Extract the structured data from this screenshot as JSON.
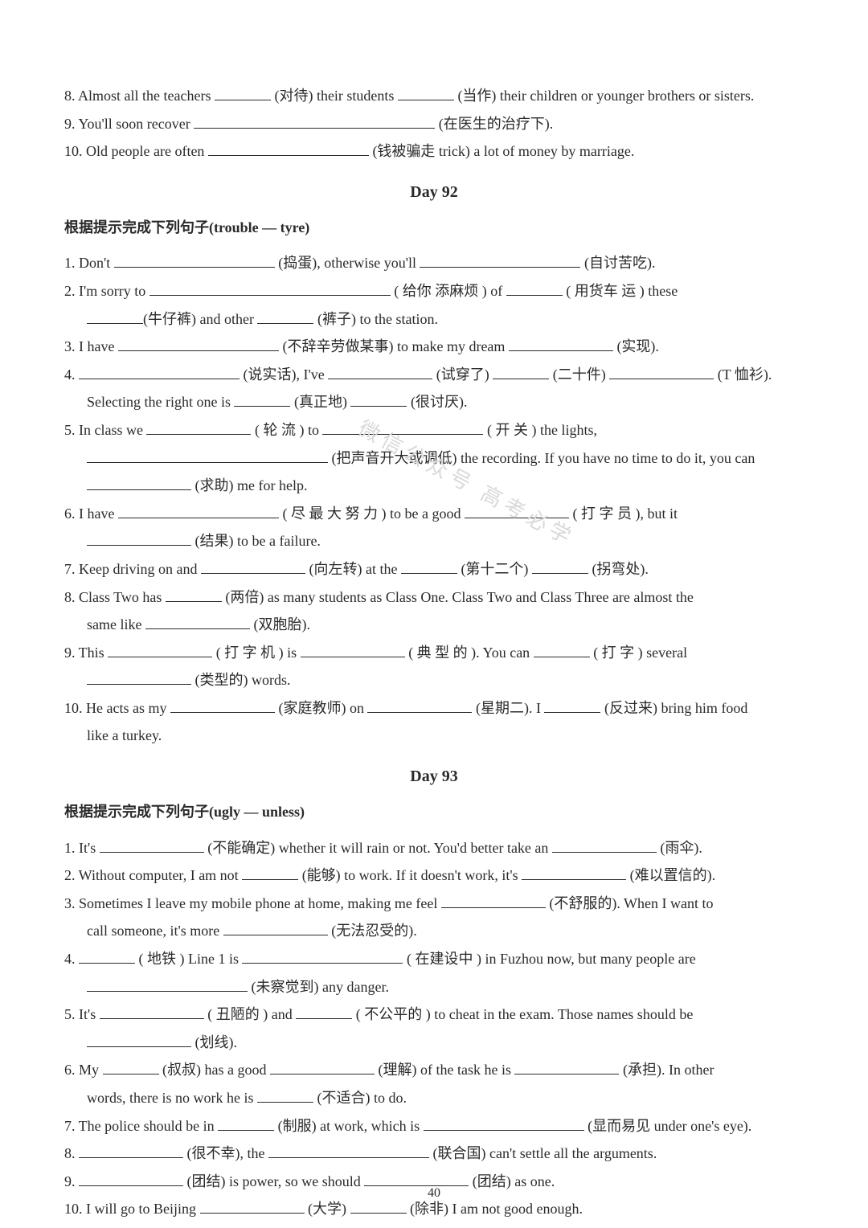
{
  "page_number": "40",
  "watermark": "微信公众号 高考必学",
  "top_items": {
    "q8": {
      "pre": "8. Almost all the teachers ",
      "h1": "(对待) their students ",
      "h2": "(当作) their children or younger brothers or sisters."
    },
    "q9": {
      "pre": "9. You'll soon recover ",
      "h1": "(在医生的治疗下)."
    },
    "q10": {
      "pre": "10. Old people are often ",
      "h1": "(钱被骗走 trick) a lot of money by marriage."
    }
  },
  "day92": {
    "title": "Day 92",
    "instruction": "根据提示完成下列句子(trouble — tyre)",
    "q1": {
      "a": "1. Don't ",
      "b": "(捣蛋), otherwise you'll ",
      "c": "(自讨苦吃)."
    },
    "q2": {
      "a": "2.  I'm sorry to ",
      "b": "( 给你 添麻烦 ) of ",
      "c": "( 用货车 运 ) these",
      "d": "(牛仔裤) and other ",
      "e": "(裤子) to the station."
    },
    "q3": {
      "a": "3. I have ",
      "b": "(不辞辛劳做某事) to make my dream ",
      "c": "(实现)."
    },
    "q4": {
      "a": "4. ",
      "b": "(说实话), I've ",
      "c": "(试穿了) ",
      "d": "(二十件) ",
      "e": "(T 恤衫).",
      "f": "Selecting the right one is ",
      "g": "(真正地) ",
      "h": "(很讨厌)."
    },
    "q5": {
      "a": "5.  In class we ",
      "b": "( 轮 流 ) to ",
      "c": "( 开 关 ) the lights,",
      "d": "(把声音开大或调低) the recording. If you have no time to do it, you can",
      "e": "(求助) me for help."
    },
    "q6": {
      "a": "6. I have ",
      "b": "( 尽 最 大 努 力 ) to be a good ",
      "c": "( 打 字 员 ), but it",
      "d": "(结果) to be a failure."
    },
    "q7": {
      "a": "7. Keep driving on and ",
      "b": "(向左转) at the ",
      "c": "(第十二个) ",
      "d": "(拐弯处)."
    },
    "q8": {
      "a": "8. Class Two has ",
      "b": "(两倍) as many students as Class One. Class Two and Class Three are almost the",
      "c": "same like ",
      "d": "(双胞胎)."
    },
    "q9": {
      "a": "9.  This ",
      "b": "( 打 字 机 ) is ",
      "c": "( 典 型 的 ). You can ",
      "d": "( 打 字 ) several",
      "e": "(类型的) words."
    },
    "q10": {
      "a": "10. He acts as my ",
      "b": "(家庭教师) on ",
      "c": "(星期二). I ",
      "d": "(反过来) bring him food",
      "e": "like a turkey."
    }
  },
  "day93": {
    "title": "Day 93",
    "instruction": "根据提示完成下列句子(ugly — unless)",
    "q1": {
      "a": "1. It's ",
      "b": "(不能确定) whether it will rain or not. You'd better take an ",
      "c": "(雨伞)."
    },
    "q2": {
      "a": "2. Without computer, I am not ",
      "b": "(能够) to work. If it doesn't work, it's ",
      "c": "(难以置信的)."
    },
    "q3": {
      "a": "3. Sometimes I leave my mobile phone at home, making me feel ",
      "b": "(不舒服的). When I want to",
      "c": "call someone, it's more ",
      "d": "(无法忍受的)."
    },
    "q4": {
      "a": "4. ",
      "b": "( 地铁 ) Line 1 is ",
      "c": "( 在建设中 ) in  Fuzhou now, but  many people are",
      "d": "(未察觉到) any danger."
    },
    "q5": {
      "a": "5. It's ",
      "b": "( 丑陋的 ) and ",
      "c": "( 不公平的 ) to cheat in the exam. Those names should be",
      "d": "(划线)."
    },
    "q6": {
      "a": "6. My ",
      "b": "(叔叔) has a good ",
      "c": "(理解) of the task he is ",
      "d": " (承担). In other",
      "e": "words, there is no work he is ",
      "f": "(不适合) to do."
    },
    "q7": {
      "a": "7. The police should be in ",
      "b": "(制服) at work, which is ",
      "c": " (显而易见 under one's eye)."
    },
    "q8": {
      "a": "8. ",
      "b": "(很不幸), the ",
      "c": "(联合国) can't settle all the arguments."
    },
    "q9": {
      "a": "9. ",
      "b": "(团结) is power, so we should ",
      "c": "(团结) as one."
    },
    "q10": {
      "a": "10. I will go to Beijing ",
      "b": "(大学) ",
      "c": "(除非) I am not good enough."
    }
  }
}
